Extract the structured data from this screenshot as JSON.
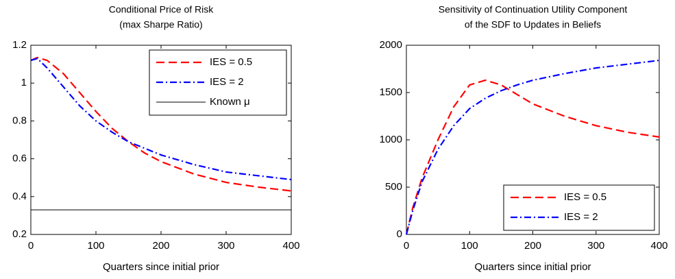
{
  "chart_data": [
    {
      "type": "line",
      "title": [
        "Conditional Price of Risk",
        "(max Sharpe Ratio)"
      ],
      "xlabel": "Quarters since initial prior",
      "x": [
        0,
        10,
        25,
        50,
        75,
        100,
        125,
        150,
        175,
        200,
        250,
        300,
        350,
        400
      ],
      "series": [
        {
          "name": "IES = 0.5",
          "color": "#ff0000",
          "dash": "dashed",
          "values": [
            1.12,
            1.135,
            1.12,
            1.05,
            0.95,
            0.85,
            0.76,
            0.69,
            0.63,
            0.585,
            0.52,
            0.475,
            0.45,
            0.43
          ]
        },
        {
          "name": "IES = 2",
          "color": "#0000ff",
          "dash": "dashdot",
          "values": [
            1.12,
            1.13,
            1.08,
            0.98,
            0.88,
            0.8,
            0.74,
            0.69,
            0.655,
            0.62,
            0.57,
            0.53,
            0.51,
            0.49
          ]
        },
        {
          "name": "Known μ",
          "color": "#000000",
          "dash": "solid",
          "values": [
            0.33,
            0.33,
            0.33,
            0.33,
            0.33,
            0.33,
            0.33,
            0.33,
            0.33,
            0.33,
            0.33,
            0.33,
            0.33,
            0.33
          ]
        }
      ],
      "xlim": [
        0,
        400
      ],
      "xticks": [
        0,
        100,
        200,
        300,
        400
      ],
      "ylim": [
        0.2,
        1.2
      ],
      "yticks": [
        0.2,
        0.4,
        0.6,
        0.8,
        1,
        1.2
      ],
      "legend": "upper right"
    },
    {
      "type": "line",
      "title": [
        "Sensitivity of Continuation Utility Component",
        "of the SDF to Updates in Beliefs"
      ],
      "xlabel": "Quarters since initial prior",
      "x": [
        0,
        10,
        25,
        50,
        75,
        100,
        125,
        150,
        175,
        200,
        250,
        300,
        350,
        400
      ],
      "series": [
        {
          "name": "IES = 0.5",
          "color": "#ff0000",
          "dash": "dashed",
          "values": [
            0,
            280,
            600,
            1000,
            1350,
            1580,
            1630,
            1580,
            1480,
            1380,
            1250,
            1150,
            1080,
            1030
          ]
        },
        {
          "name": "IES = 2",
          "color": "#0000ff",
          "dash": "dashdot",
          "values": [
            0,
            250,
            560,
            900,
            1150,
            1330,
            1440,
            1520,
            1580,
            1630,
            1700,
            1760,
            1800,
            1840
          ]
        }
      ],
      "xlim": [
        0,
        400
      ],
      "xticks": [
        0,
        100,
        200,
        300,
        400
      ],
      "ylim": [
        0,
        2000
      ],
      "yticks": [
        0,
        500,
        1000,
        1500,
        2000
      ],
      "legend": "lower right"
    }
  ]
}
